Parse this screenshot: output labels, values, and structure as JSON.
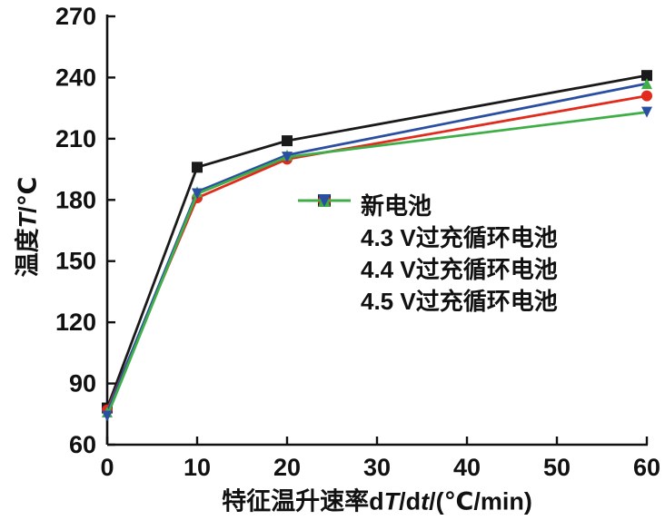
{
  "figure": {
    "background": "#ffffff",
    "axis_color": "#111111"
  },
  "chart_data": {
    "type": "line",
    "x": [
      0,
      10,
      20,
      60
    ],
    "series": [
      {
        "name": "新电池",
        "line_color": "#1a1a1a",
        "marker": "square",
        "marker_color": "#1a1a1a",
        "values": [
          78,
          196,
          209,
          241
        ]
      },
      {
        "name": "4.3 V过充循环电池",
        "line_color": "#e02b1d",
        "marker": "circle",
        "marker_color": "#e02b1d",
        "values": [
          77,
          181,
          200,
          231
        ]
      },
      {
        "name": "4.4 V过充循环电池",
        "line_color": "#2a4fa2",
        "marker": "triangle-up",
        "marker_color": "#3fae49",
        "values": [
          76,
          184,
          202,
          237
        ]
      },
      {
        "name": "4.5 V过充循环电池",
        "line_color": "#3fae49",
        "marker": "triangle-down",
        "marker_color": "#2a4fa2",
        "values": [
          74,
          183,
          201,
          223
        ]
      }
    ],
    "title": "",
    "xlabel": "特征温升速率dT/dt/(℃/min)",
    "ylabel": "温度T/℃",
    "xlabel_parts": [
      {
        "text": "特征温升速率d"
      },
      {
        "text": "T",
        "italic": true
      },
      {
        "text": "/d"
      },
      {
        "text": "t",
        "italic": true
      },
      {
        "text": "/(℃/min)"
      }
    ],
    "ylabel_parts": [
      {
        "text": "温度"
      },
      {
        "text": "T",
        "italic": true
      },
      {
        "text": "/℃"
      }
    ],
    "xlim": [
      0,
      60
    ],
    "ylim": [
      60,
      270
    ],
    "xticks": [
      0,
      10,
      20,
      30,
      40,
      50,
      60
    ],
    "yticks": [
      60,
      90,
      120,
      150,
      180,
      210,
      240,
      270
    ],
    "grid": false,
    "legend_position": "inside-center-right"
  }
}
